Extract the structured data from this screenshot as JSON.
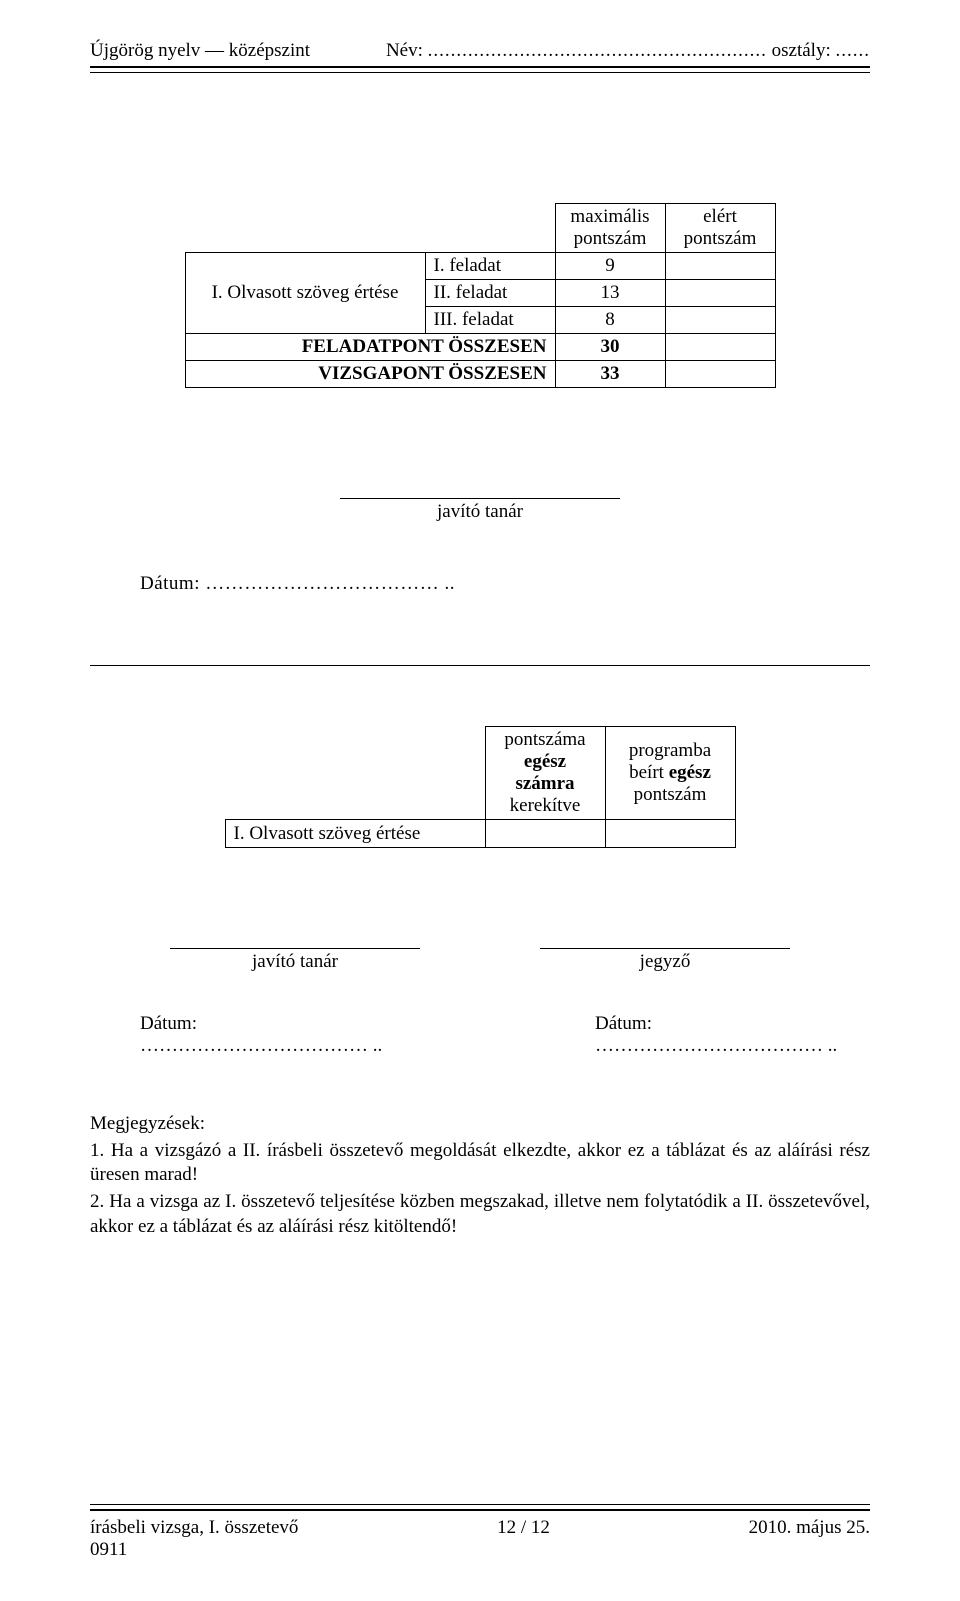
{
  "header": {
    "subject_level": "Újgörög nyelv — középszint",
    "name_label": "Név:",
    "name_dots": "...........................................................",
    "class_label": "osztály:",
    "class_dots": "......"
  },
  "score_table": {
    "col_max_header_line1": "maximális",
    "col_max_header_line2": "pontszám",
    "col_earned_header_line1": "elért",
    "col_earned_header_line2": "pontszám",
    "section_label": "I. Olvasott szöveg értése",
    "rows": [
      {
        "task": "I. feladat",
        "max": "9"
      },
      {
        "task": "II. feladat",
        "max": "13"
      },
      {
        "task": "III. feladat",
        "max": "8"
      }
    ],
    "total_task_label": "FELADATPONT ÖSSZESEN",
    "total_task_max": "30",
    "total_exam_label": "VIZSGAPONT ÖSSZESEN",
    "total_exam_max": "33"
  },
  "signature1": {
    "label": "javító tanár"
  },
  "date1": {
    "label": "Dátum:",
    "dots": "………………………………",
    "terminator": ".."
  },
  "table2": {
    "col2_header_line1": "pontszáma",
    "col2_header_line2": "egész",
    "col2_header_line3": "számra",
    "col2_header_line4": "kerekítve",
    "col3_header_line1": "programba",
    "col3_header_line2": "beírt egész",
    "col3_header_line3": "pontszám",
    "row_label": "I. Olvasott szöveg értése"
  },
  "signature2": {
    "left": "javító tanár",
    "right": "jegyző"
  },
  "date2": {
    "label_left": "Dátum:",
    "dots_left": "………………………………",
    "term_left": "..",
    "label_right": "Dátum:",
    "dots_right": "………………………………",
    "term_right": ".."
  },
  "notes": {
    "heading": "Megjegyzések:",
    "item1": "1. Ha a vizsgázó a II. írásbeli összetevő megoldását elkezdte, akkor ez a táblázat és az aláírási rész üresen marad!",
    "item2": "2. Ha a vizsga az I. összetevő teljesítése közben megszakad, illetve nem folytatódik a II. összetevővel, akkor ez a táblázat és az aláírási rész kitöltendő!"
  },
  "footer": {
    "left": "írásbeli vizsga, I. összetevő",
    "center": "12 / 12",
    "right": "2010. május 25.",
    "code": "0911"
  }
}
